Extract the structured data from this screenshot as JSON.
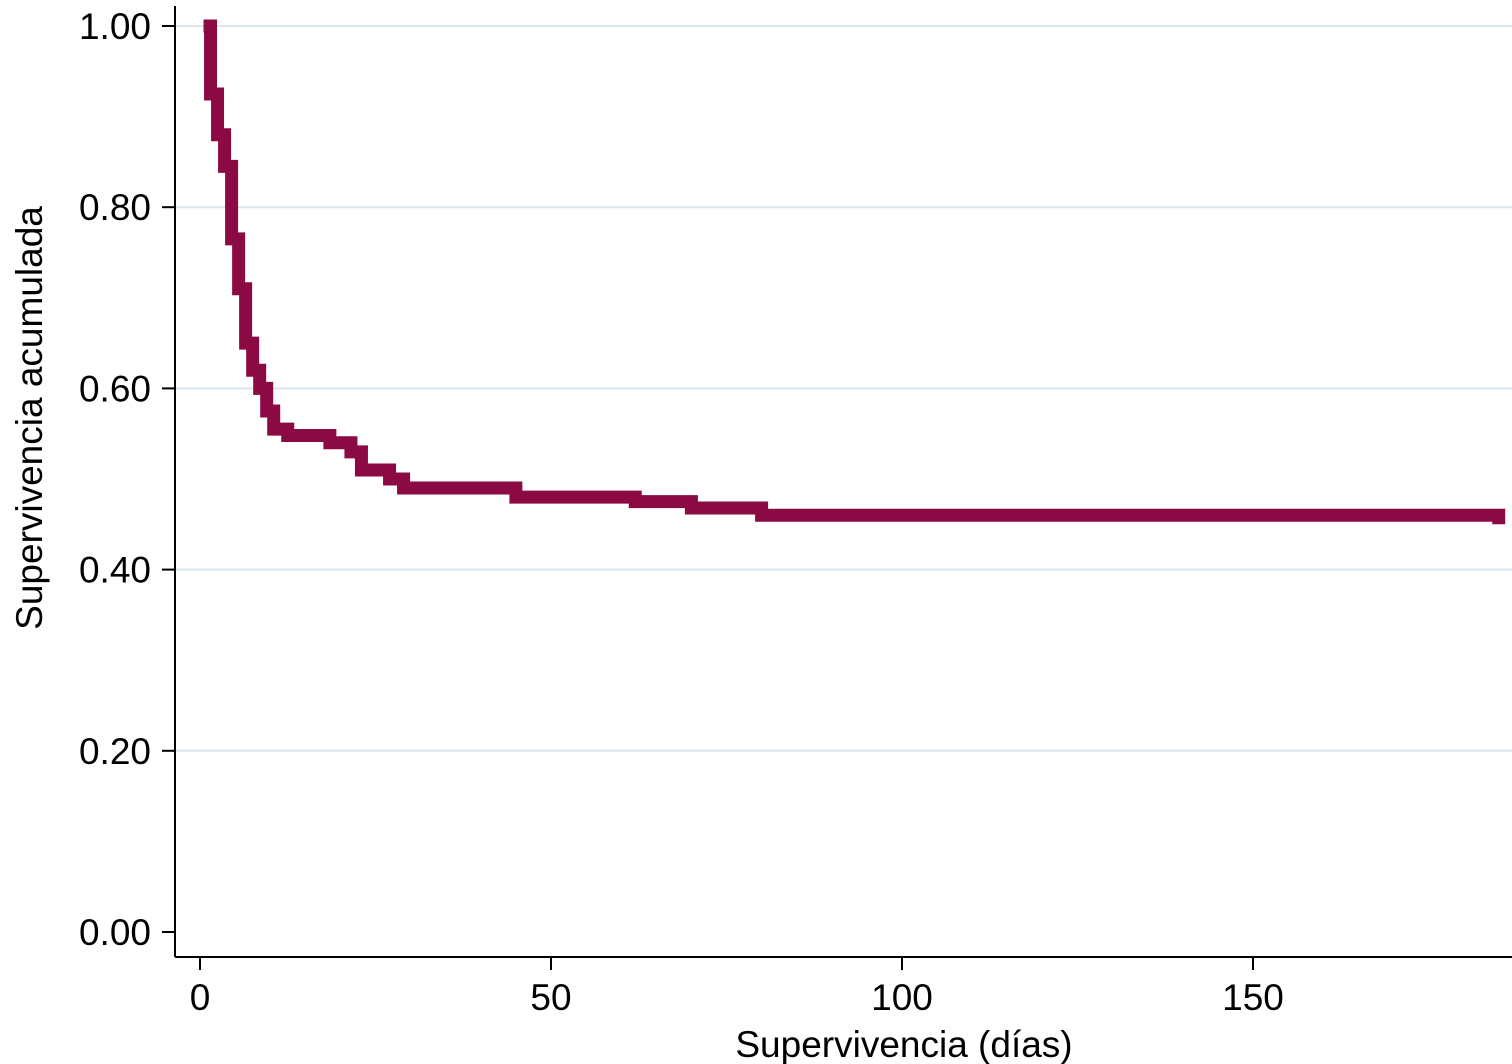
{
  "chart_data": {
    "type": "line",
    "step": true,
    "xlabel": "Supervivencia (días)",
    "ylabel": "Supervivencia acumulada",
    "xlim": [
      -7.5,
      185
    ],
    "ylim": [
      -0.07,
      1.0
    ],
    "xticks": [
      0,
      50,
      100,
      150
    ],
    "xtick_labels": [
      "0",
      "50",
      "100",
      "150"
    ],
    "yticks": [
      0.0,
      0.2,
      0.4,
      0.6,
      0.8,
      1.0
    ],
    "ytick_labels": [
      "0.00",
      "0.20",
      "0.40",
      "0.60",
      "0.80",
      "1.00"
    ],
    "grid": true,
    "colors": {
      "line": "#8c0a44",
      "grid": "#dde5ec",
      "axis": "#000000"
    },
    "series": [
      {
        "x": [
          0.5,
          1.5,
          2.5,
          3.5,
          4.5,
          5.5,
          6.5,
          7.5,
          8.5,
          9.5,
          10.5,
          12.5,
          18.5,
          21.5,
          23,
          27,
          29,
          45,
          62,
          70,
          80,
          185
        ],
        "y": [
          1.0,
          0.925,
          0.88,
          0.845,
          0.765,
          0.71,
          0.65,
          0.62,
          0.6,
          0.575,
          0.555,
          0.548,
          0.54,
          0.53,
          0.51,
          0.5,
          0.49,
          0.48,
          0.475,
          0.468,
          0.46,
          0.45
        ]
      }
    ]
  }
}
